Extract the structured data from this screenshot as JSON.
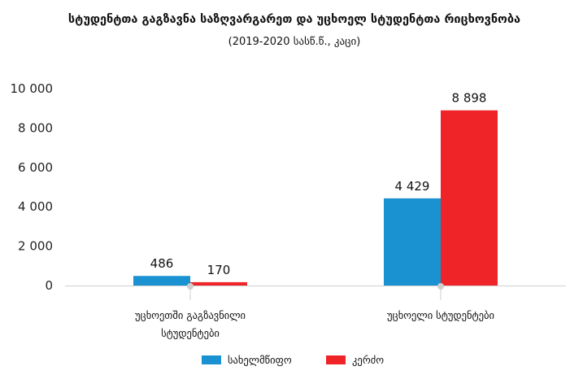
{
  "chart_data": {
    "type": "bar",
    "title": "სტუდენტთა გაგზავნა საზღვარგარეთ და უცხოელ სტუდენტთა რიცხოვნობა",
    "subtitle": "(2019-2020 სასწ.წ., კაცი)",
    "categories": [
      [
        "უცხოეთში გაგზავნილი",
        "სტუდენტები"
      ],
      [
        "უცხოელი სტუდენტები"
      ]
    ],
    "series": [
      {
        "name": "სახელმწიფო",
        "color": "#1a91d0",
        "values": [
          486,
          4429
        ],
        "labels": [
          "486",
          "4 429"
        ]
      },
      {
        "name": "კერძო",
        "color": "#ee2428",
        "values": [
          170,
          8898
        ],
        "labels": [
          "170",
          "8 898"
        ]
      }
    ],
    "ylim": [
      0,
      10000
    ],
    "yticks": [
      0,
      2000,
      4000,
      6000,
      8000,
      10000
    ],
    "ytick_labels": [
      "0",
      "2 000",
      "4 000",
      "6 000",
      "8 000",
      "10 000"
    ],
    "grid": false,
    "legend": "bottom-center",
    "xlabel": "",
    "ylabel": ""
  }
}
